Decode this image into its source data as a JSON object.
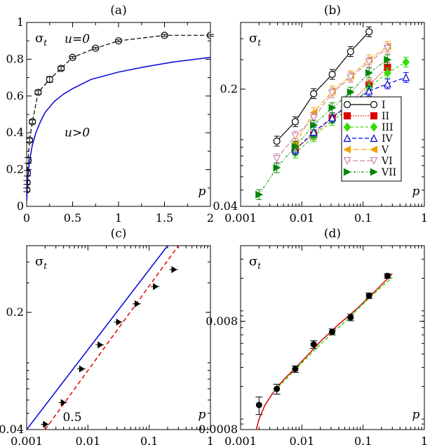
{
  "chart_data": [
    {
      "panel": "(a)",
      "type": "line",
      "xscale": "linear",
      "yscale": "linear",
      "xlim": [
        0,
        2
      ],
      "ylim": [
        0,
        1
      ],
      "xticks": [
        0,
        0.5,
        1,
        1.5,
        2
      ],
      "xticklabels": [
        "0",
        "0.5",
        "1",
        "1.5",
        "2"
      ],
      "yticks": [
        0,
        0.2,
        0.4,
        0.6,
        0.8,
        1
      ],
      "yticklabels": [
        "0",
        "0.2",
        "0.4",
        "0.6",
        "0.8",
        "1"
      ],
      "ylabel": "σ",
      "ylabel_sub": "t",
      "xlabel": "p",
      "annotations": [
        {
          "text": "u=0",
          "x": 0.55,
          "y": 0.89
        },
        {
          "text": "u>0",
          "x": 0.55,
          "y": 0.38
        }
      ],
      "series": [
        {
          "name": "u=0",
          "style": "dashed-open-circle",
          "color": "#000000",
          "x": [
            0.002,
            0.004,
            0.008,
            0.016,
            0.031,
            0.0625,
            0.125,
            0.25,
            0.375,
            0.5,
            0.75,
            1,
            1.5,
            2
          ],
          "y": [
            0.09,
            0.13,
            0.18,
            0.25,
            0.36,
            0.46,
            0.62,
            0.69,
            0.75,
            0.81,
            0.86,
            0.9,
            0.93,
            0.93
          ],
          "yerr": [
            0.01,
            0.01,
            0.015,
            0.015,
            0.01,
            0.01,
            0.01,
            0.015,
            0.01,
            0.005,
            0.005,
            0.005,
            0.005,
            0.005
          ]
        },
        {
          "name": "u>0",
          "style": "solid",
          "color": "#0000dd",
          "x": [
            0.001,
            0.01,
            0.03,
            0.06,
            0.1,
            0.15,
            0.2,
            0.3,
            0.4,
            0.5,
            0.7,
            1,
            1.3,
            1.6,
            2
          ],
          "y": [
            0.03,
            0.14,
            0.24,
            0.33,
            0.4,
            0.46,
            0.51,
            0.57,
            0.61,
            0.64,
            0.69,
            0.73,
            0.76,
            0.785,
            0.81
          ]
        }
      ]
    },
    {
      "panel": "(b)",
      "type": "line",
      "xscale": "log",
      "yscale": "log",
      "xlim": [
        0.001,
        1
      ],
      "ylim": [
        0.04,
        0.5
      ],
      "xticks": [
        0.001,
        0.01,
        0.1,
        1
      ],
      "xticklabels": [
        "0.001",
        "0.01",
        "0.1",
        "1"
      ],
      "yticks": [
        0.04,
        0.2
      ],
      "yticklabels": [
        "0.04",
        "0.2"
      ],
      "ylabel": "σ",
      "ylabel_sub": "t",
      "xlabel": "p",
      "legend_position": "right",
      "series": [
        {
          "name": "I",
          "color": "#000000",
          "dash": "",
          "marker": "circle-open",
          "x": [
            0.0039,
            0.0078,
            0.0156,
            0.0313,
            0.0625,
            0.125
          ],
          "y": [
            0.098,
            0.128,
            0.188,
            0.245,
            0.335,
            0.44
          ]
        },
        {
          "name": "II",
          "color": "#e00000",
          "dash": "1.5,2",
          "marker": "square",
          "x": [
            0.0078,
            0.0156,
            0.0313,
            0.0625,
            0.125,
            0.25
          ],
          "y": [
            0.088,
            0.107,
            0.135,
            0.168,
            0.212,
            0.27
          ]
        },
        {
          "name": "III",
          "color": "#33dd00",
          "dash": "4,3",
          "marker": "diamond",
          "x": [
            0.0078,
            0.0156,
            0.0313,
            0.0625,
            0.125,
            0.25,
            0.5
          ],
          "y": [
            0.083,
            0.104,
            0.13,
            0.156,
            0.205,
            0.25,
            0.29
          ]
        },
        {
          "name": "IV",
          "color": "#0000dd",
          "dash": "6,3",
          "marker": "triangle-up-open",
          "x": [
            0.0078,
            0.0156,
            0.0313,
            0.0625,
            0.125,
            0.25,
            0.5
          ],
          "y": [
            0.087,
            0.111,
            0.135,
            0.165,
            0.195,
            0.215,
            0.235
          ]
        },
        {
          "name": "V",
          "color": "#f0a000",
          "dash": "6,2,1.5,2",
          "marker": "triangle-left",
          "x": [
            0.0078,
            0.0156,
            0.0313,
            0.0625,
            0.125,
            0.25
          ],
          "y": [
            0.095,
            0.145,
            0.195,
            0.24,
            0.3,
            0.36
          ]
        },
        {
          "name": "VI",
          "color": "#cc88aa",
          "dash": "7,3",
          "marker": "triangle-down-open",
          "x": [
            0.0039,
            0.0078,
            0.0156,
            0.0313,
            0.0625,
            0.125,
            0.25
          ],
          "y": [
            0.077,
            0.105,
            0.135,
            0.19,
            0.235,
            0.29,
            0.35
          ]
        },
        {
          "name": "VII",
          "color": "#008800",
          "dash": "3,2,1,2,1,2",
          "marker": "triangle-right",
          "x": [
            0.002,
            0.0039,
            0.0078,
            0.0156,
            0.0313,
            0.0625,
            0.125,
            0.25
          ],
          "y": [
            0.047,
            0.068,
            0.091,
            0.122,
            0.155,
            0.192,
            0.25,
            0.3
          ]
        }
      ]
    },
    {
      "panel": "(c)",
      "type": "scatter",
      "xscale": "log",
      "yscale": "log",
      "xlim": [
        0.001,
        1
      ],
      "ylim": [
        0.04,
        0.5
      ],
      "xticks": [
        0.001,
        0.01,
        0.1,
        1
      ],
      "xticklabels": [
        "0.001",
        "0.01",
        "0.1",
        "1"
      ],
      "yticks": [
        0.04,
        0.2
      ],
      "yticklabels": [
        "0.04",
        "0.2"
      ],
      "ylabel": "σ",
      "ylabel_sub": "t",
      "xlabel": "p",
      "annotations": [
        {
          "text": "0.5",
          "color": "#e00000"
        }
      ],
      "points": {
        "x": [
          0.002,
          0.0039,
          0.0078,
          0.0156,
          0.0313,
          0.0625,
          0.125,
          0.25
        ],
        "y": [
          0.043,
          0.058,
          0.092,
          0.128,
          0.175,
          0.225,
          0.285,
          0.36
        ]
      },
      "lines": [
        {
          "name": "solid",
          "color": "#0000dd",
          "dash": "",
          "x": [
            0.001,
            0.2
          ],
          "y": [
            0.04,
            0.5
          ]
        },
        {
          "name": "slope 0.5",
          "color": "#e00000",
          "dash": "6,4",
          "x": [
            0.002,
            0.3
          ],
          "y": [
            0.04,
            0.5
          ]
        }
      ]
    },
    {
      "panel": "(d)",
      "type": "scatter",
      "xscale": "log",
      "yscale": "log",
      "xlim": [
        0.001,
        1
      ],
      "ylim": [
        0.0008,
        0.04
      ],
      "xticks": [
        0.001,
        0.01,
        0.1,
        1
      ],
      "xticklabels": [
        "0.001",
        "0.01",
        "0.1",
        "1"
      ],
      "yticks": [
        0.0008,
        0.008
      ],
      "yticklabels": [
        "0.0008",
        "0.008"
      ],
      "ylabel": "σ",
      "ylabel_sub": "t",
      "xlabel": "p",
      "points": {
        "x": [
          0.002,
          0.0039,
          0.0078,
          0.0156,
          0.0313,
          0.0625,
          0.125,
          0.25
        ],
        "y": [
          0.00135,
          0.0019,
          0.0029,
          0.0049,
          0.0064,
          0.0087,
          0.0138,
          0.021
        ],
        "yerr": [
          0.00025,
          0.0002,
          0.0002,
          0.0004,
          0.0004,
          0.0006,
          0.0008,
          0.001
        ]
      },
      "lines": [
        {
          "name": "fit",
          "color": "#e00000",
          "dash": "",
          "x": [
            0.0018,
            0.002,
            0.0025,
            0.0035,
            0.005,
            0.008,
            0.012,
            0.02,
            0.04,
            0.08,
            0.15,
            0.3
          ],
          "y": [
            0.0008,
            0.001,
            0.00135,
            0.0018,
            0.0023,
            0.003,
            0.0038,
            0.0052,
            0.0075,
            0.0105,
            0.0148,
            0.022
          ]
        },
        {
          "name": "dashed",
          "color": "#33dd00",
          "dash": "5,3",
          "x": [
            0.0035,
            0.008,
            0.02,
            0.05,
            0.12,
            0.3
          ],
          "y": [
            0.0018,
            0.0029,
            0.0049,
            0.0079,
            0.0128,
            0.0205
          ]
        }
      ]
    }
  ]
}
